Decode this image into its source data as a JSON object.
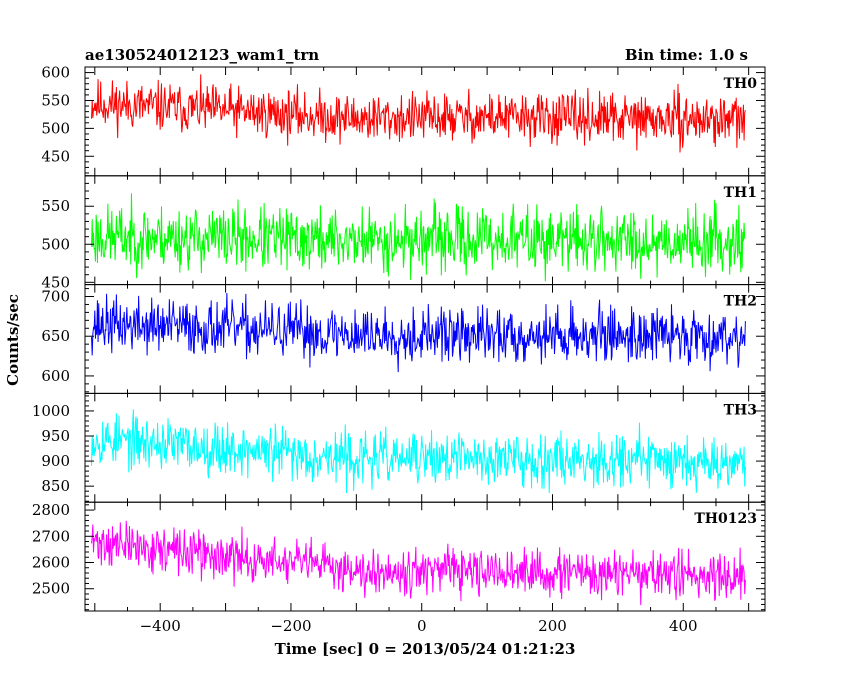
{
  "chart_data": {
    "type": "line",
    "title_left": "ae130524012123_wam1_trn",
    "title_right": "Bin time: 1.0 s",
    "xlabel": "Time [sec] 0 = 2013/05/24 01:21:23",
    "ylabel": "Counts/sec",
    "xlim": [
      -515,
      525
    ],
    "x_ticks": [
      -400,
      -200,
      0,
      200,
      400
    ],
    "x_range": [
      -505,
      495
    ],
    "panels": [
      {
        "name": "TH0",
        "color": "#ff0000",
        "ylim": [
          415,
          610
        ],
        "ticks": [
          450,
          500,
          550,
          600
        ],
        "mean": [
          [
            -505,
            545
          ],
          [
            -300,
            532
          ],
          [
            -100,
            518
          ],
          [
            100,
            520
          ],
          [
            300,
            517
          ],
          [
            495,
            515
          ]
        ],
        "spread": 38,
        "seed": 11
      },
      {
        "name": "TH1",
        "color": "#00ff00",
        "ylim": [
          447,
          590
        ],
        "ticks": [
          450,
          500,
          550
        ],
        "mean": [
          [
            -505,
            510
          ],
          [
            -300,
            508
          ],
          [
            -100,
            505
          ],
          [
            100,
            507
          ],
          [
            300,
            505
          ],
          [
            495,
            505
          ]
        ],
        "spread": 36,
        "seed": 23
      },
      {
        "name": "TH2",
        "color": "#0000ff",
        "ylim": [
          578,
          715
        ],
        "ticks": [
          600,
          650,
          700
        ],
        "mean": [
          [
            -505,
            665
          ],
          [
            -300,
            660
          ],
          [
            -100,
            652
          ],
          [
            100,
            651
          ],
          [
            300,
            652
          ],
          [
            495,
            650
          ]
        ],
        "spread": 30,
        "seed": 37
      },
      {
        "name": "TH3",
        "color": "#00ffff",
        "ylim": [
          818,
          1035
        ],
        "ticks": [
          850,
          900,
          950,
          1000
        ],
        "mean": [
          [
            -505,
            945
          ],
          [
            -300,
            925
          ],
          [
            -100,
            905
          ],
          [
            100,
            905
          ],
          [
            300,
            905
          ],
          [
            495,
            900
          ]
        ],
        "spread": 45,
        "seed": 53
      },
      {
        "name": "TH0123",
        "color": "#ff00ff",
        "ylim": [
          2415,
          2830
        ],
        "ticks": [
          2500,
          2600,
          2700,
          2800
        ],
        "mean": [
          [
            -505,
            2680
          ],
          [
            -300,
            2620
          ],
          [
            -100,
            2575
          ],
          [
            100,
            2560
          ],
          [
            300,
            2555
          ],
          [
            495,
            2550
          ]
        ],
        "spread": 75,
        "seed": 71
      }
    ]
  }
}
